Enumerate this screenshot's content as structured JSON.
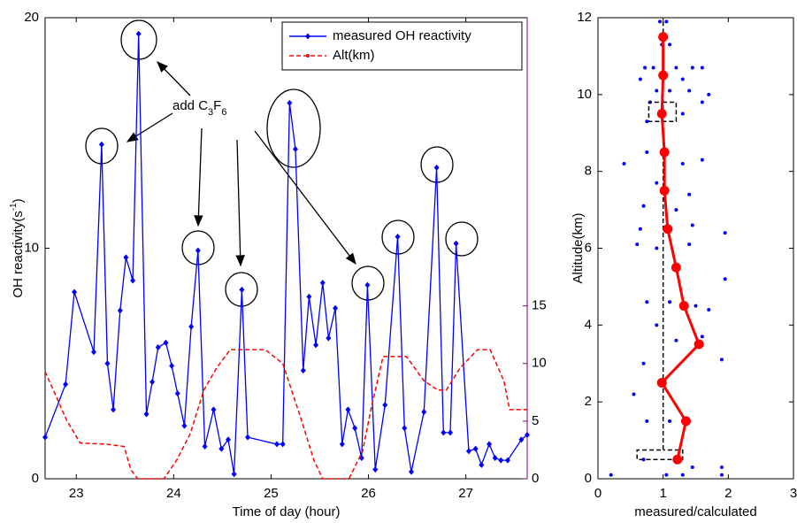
{
  "chart_data": [
    {
      "type": "line",
      "xlabel": "Time of day (hour)",
      "ylabel": [
        "OH reactivity(s",
        "-1",
        ")"
      ],
      "annotation": [
        "add C",
        "3",
        "F",
        "6"
      ],
      "xlim": [
        22.68,
        27.63
      ],
      "xticks": [
        23,
        24,
        25,
        26,
        27
      ],
      "ylim": [
        0,
        20
      ],
      "yticks": [
        0,
        10,
        20
      ],
      "y_color": "#0000ff",
      "y2lim": [
        0,
        40
      ],
      "y2ticks": [
        0,
        5,
        10,
        15
      ],
      "y2_color": "#ff0000",
      "y2_axis_color": "#800080",
      "legend": "upper right",
      "series": [
        {
          "name": "measured OH reactivity",
          "color": "#0000ff",
          "marker": "diamond",
          "x": [
            22.68,
            22.89,
            22.98,
            23.18,
            23.26,
            23.32,
            23.38,
            23.45,
            23.51,
            23.58,
            23.64,
            23.72,
            23.78,
            23.84,
            23.92,
            23.98,
            24.04,
            24.11,
            24.18,
            24.25,
            24.32,
            24.41,
            24.49,
            24.56,
            24.62,
            24.7,
            24.76,
            25.06,
            25.12,
            25.19,
            25.25,
            25.33,
            25.39,
            25.46,
            25.53,
            25.59,
            25.66,
            25.73,
            25.79,
            25.86,
            25.93,
            25.99,
            26.07,
            26.17,
            26.3,
            26.37,
            26.44,
            26.57,
            26.7,
            26.77,
            26.84,
            26.9,
            27.03,
            27.1,
            27.16,
            27.24,
            27.3,
            27.36,
            27.43,
            27.57,
            27.63
          ],
          "values": [
            1.8,
            4.1,
            8.1,
            5.5,
            14.5,
            5.0,
            3.0,
            7.3,
            9.6,
            8.6,
            19.3,
            2.8,
            4.2,
            5.7,
            5.9,
            4.9,
            3.7,
            2.3,
            6.6,
            9.9,
            1.4,
            3.0,
            1.3,
            1.7,
            0.2,
            8.2,
            1.8,
            1.5,
            1.5,
            16.3,
            14.3,
            4.7,
            7.9,
            5.8,
            8.5,
            6.1,
            7.4,
            1.5,
            3.0,
            2.2,
            0.9,
            8.4,
            0.4,
            3.2,
            10.5,
            2.2,
            0.3,
            2.9,
            13.5,
            2.0,
            2.0,
            10.2,
            1.2,
            1.3,
            0.6,
            1.5,
            0.9,
            0.8,
            0.8,
            1.7,
            1.9
          ]
        },
        {
          "name": "Alt(km)",
          "color": "#ff0000",
          "marker": "dot",
          "dash": true,
          "axis": "y2",
          "x": [
            22.68,
            22.78,
            22.9,
            23.04,
            23.31,
            23.49,
            23.56,
            23.63,
            23.9,
            24.03,
            24.17,
            24.31,
            24.44,
            24.58,
            24.94,
            25.12,
            25.3,
            25.44,
            25.53,
            25.8,
            25.94,
            26.03,
            26.15,
            26.39,
            26.57,
            26.71,
            26.8,
            26.94,
            27.12,
            27.25,
            27.39,
            27.45,
            27.63
          ],
          "values": [
            9.3,
            7.4,
            5.1,
            3.1,
            3.0,
            2.8,
            0.8,
            0,
            0,
            1.6,
            3.9,
            7.7,
            9.6,
            11.2,
            11.2,
            10.0,
            5.4,
            1.6,
            0,
            0,
            2.4,
            6.2,
            10.6,
            10.6,
            8.5,
            7.7,
            7.7,
            9.6,
            11.2,
            11.2,
            8.5,
            6.0,
            6.0
          ]
        }
      ]
    },
    {
      "type": "scatter",
      "xlabel": "measured/calculated",
      "ylabel": [
        "Altitude(km)"
      ],
      "xlim": [
        0,
        3
      ],
      "xticks": [
        0,
        1,
        2,
        3
      ],
      "ylim": [
        0,
        12
      ],
      "yticks": [
        0,
        2,
        4,
        6,
        8,
        10,
        12
      ],
      "series": [
        {
          "color": "#0000ff",
          "marker": "dot",
          "line": false,
          "x": [
            0.95,
            1.05,
            1.1,
            0.98,
            0.72,
            0.85,
            1.2,
            1.45,
            1.6,
            0.65,
            1.3,
            0.9,
            1.1,
            1.4,
            1.7,
            0.8,
            1.6,
            1.3,
            0.75,
            0.4,
            0.75,
            1.3,
            1.6,
            0.9,
            1.4,
            0.7,
            1.2,
            0.65,
            1.45,
            1.95,
            0.6,
            0.9,
            1.4,
            1.2,
            1.95,
            0.75,
            1.1,
            1.5,
            1.7,
            0.9,
            1.6,
            1.2,
            1.9,
            0.7,
            0.55,
            0.75,
            1.1,
            0.7,
            1.45,
            1.9,
            0.2,
            1.05,
            1.3,
            1.9
          ],
          "values": [
            11.9,
            11.9,
            11.3,
            11.3,
            10.7,
            10.7,
            10.7,
            10.7,
            10.7,
            10.4,
            10.4,
            10.1,
            10.1,
            10.1,
            10.0,
            9.8,
            9.8,
            9.5,
            9.3,
            8.2,
            8.5,
            8.2,
            8.3,
            7.7,
            7.4,
            7.1,
            7.0,
            6.5,
            6.6,
            6.4,
            6.1,
            6.0,
            6.1,
            5.5,
            5.2,
            4.6,
            4.6,
            4.5,
            4.4,
            4.0,
            3.7,
            3.6,
            3.1,
            3.0,
            2.2,
            1.5,
            1.5,
            0.5,
            0.3,
            0.3,
            0.1,
            0.1,
            0.1,
            0.1
          ]
        },
        {
          "color": "#000000",
          "dash": true,
          "x": [
            1,
            1,
            0.78,
            0.78,
            1.2,
            1.2,
            1,
            1,
            0.6,
            0.6,
            1.3,
            1.3,
            1
          ],
          "values": [
            11.9,
            9.8,
            9.8,
            9.3,
            9.3,
            9.8,
            9.8,
            0.75,
            0.75,
            0.5,
            0.5,
            0.75,
            0.75
          ]
        },
        {
          "color": "#ff0000",
          "marker": "circle",
          "x": [
            1.0,
            1.0,
            0.98,
            1.02,
            1.02,
            1.07,
            1.2,
            1.32,
            1.55,
            0.98,
            1.35,
            1.22
          ],
          "values": [
            11.5,
            10.5,
            9.5,
            8.5,
            7.5,
            6.5,
            5.5,
            4.5,
            3.5,
            2.5,
            1.5,
            0.5
          ]
        }
      ]
    }
  ]
}
